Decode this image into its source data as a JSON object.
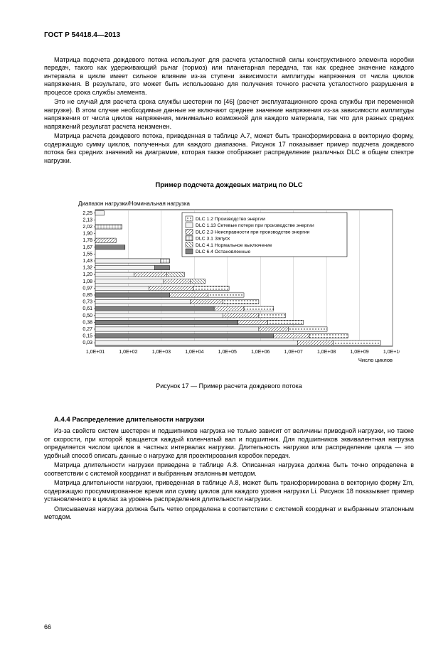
{
  "header": "ГОСТ Р 54418.4—2013",
  "para1": "Матрица подсчета дождевого потока используют для расчета усталостной силы конструктивного элемента коробки передач, такого как удерживающий рычаг (тормоз) или планетарная передача, так как среднее значение каждого интервала в цикле имеет сильное влияние из-за ступени зависимости амплитуды напряжения от числа циклов напряжения. В результате, это может быть использовано для получения точного расчета усталостного разрушения в процессе срока службы элемента.",
  "para2": "Это не случай для расчета срока службы шестерни по [46] (расчет эксплуатационного срока службы при переменной нагрузке). В этом случае необходимые данные не включают среднее значение напряжения из-за зависимости амплитуды напряжения от числа циклов напряжения, минимально возможной для каждого материала, так что для разных средних напряжений результат расчета неизменен.",
  "para3": "Матрица расчета дождевого потока, приведенная в таблице А.7, может быть трансформирована в векторную форму, содержащую сумму циклов, полученных для каждого диапазона. Рисунок 17 показывает пример подсчета дождевого потока без средних значений на диаграмме, которая также отображает распределение различных DLC в общем спектре нагрузки.",
  "chart": {
    "title": "Пример подсчета дождевых матриц по DLC",
    "ylabel": "Диапазон нагрузки/Номинальная нагрузка",
    "xlabel": "Число циклов",
    "yticks": [
      "2,25",
      "2,13",
      "2,02",
      "1,90",
      "1,78",
      "1,67",
      "1,55",
      "1,43",
      "1,32",
      "1,20",
      "1,08",
      "0,97",
      "0,85",
      "0,73",
      "0,61",
      "0,50",
      "0,38",
      "0,27",
      "0,15",
      "0,03"
    ],
    "xticks": [
      "1,0E+01",
      "1,0E+02",
      "1,0E+03",
      "1,0E+04",
      "1,0E+05",
      "1,0E+06",
      "1,0E+07",
      "1,0E+08",
      "1,0E+09",
      "1,0E+10"
    ],
    "legend": [
      {
        "label": "DLC 1.2 Производство энергии",
        "pattern": "dot"
      },
      {
        "label": "DLC 1.13 Сетевые потери при производстве энергии",
        "pattern": "light"
      },
      {
        "label": "DLC 2.3 Неисправности при производстве энергии",
        "pattern": "diag1"
      },
      {
        "label": "DLC 3.1 Запуск",
        "pattern": "grid"
      },
      {
        "label": "DLC 4.1 Нормальное выключение",
        "pattern": "diag2"
      },
      {
        "label": "DLC 6.4 Остановленные",
        "pattern": "solid"
      }
    ],
    "bars": [
      [
        [
          0,
          0.03,
          "light"
        ]
      ],
      [],
      [
        [
          0,
          0.09,
          "grid"
        ]
      ],
      [],
      [
        [
          0,
          0.07,
          "diag1"
        ]
      ],
      [
        [
          0,
          0.1,
          "solid"
        ]
      ],
      [],
      [
        [
          0,
          0.22,
          "light"
        ],
        [
          0.22,
          0.25,
          "grid"
        ]
      ],
      [
        [
          0,
          0.2,
          "light"
        ],
        [
          0.2,
          0.25,
          "solid"
        ]
      ],
      [
        [
          0,
          0.13,
          "light"
        ],
        [
          0.13,
          0.24,
          "diag1"
        ],
        [
          0.24,
          0.3,
          "diag2"
        ]
      ],
      [
        [
          0,
          0.23,
          "light"
        ],
        [
          0.23,
          0.32,
          "diag1"
        ],
        [
          0.32,
          0.37,
          "diag2"
        ]
      ],
      [
        [
          0,
          0.18,
          "light"
        ],
        [
          0.18,
          0.33,
          "diag1"
        ],
        [
          0.33,
          0.45,
          "dot"
        ]
      ],
      [
        [
          0,
          0.25,
          "solid"
        ],
        [
          0.25,
          0.38,
          "diag1"
        ],
        [
          0.38,
          0.5,
          "dot"
        ]
      ],
      [
        [
          0,
          0.32,
          "light"
        ],
        [
          0.32,
          0.43,
          "diag1"
        ],
        [
          0.43,
          0.55,
          "dot"
        ]
      ],
      [
        [
          0,
          0.4,
          "solid"
        ],
        [
          0.4,
          0.5,
          "diag1"
        ],
        [
          0.5,
          0.6,
          "dot"
        ]
      ],
      [
        [
          0,
          0.43,
          "light"
        ],
        [
          0.43,
          0.55,
          "diag1"
        ],
        [
          0.55,
          0.64,
          "dot"
        ]
      ],
      [
        [
          0,
          0.48,
          "solid"
        ],
        [
          0.48,
          0.58,
          "diag1"
        ],
        [
          0.58,
          0.7,
          "dot"
        ]
      ],
      [
        [
          0,
          0.55,
          "light"
        ],
        [
          0.55,
          0.65,
          "diag1"
        ],
        [
          0.65,
          0.78,
          "dot"
        ]
      ],
      [
        [
          0,
          0.6,
          "solid"
        ],
        [
          0.6,
          0.72,
          "diag1"
        ],
        [
          0.72,
          0.85,
          "dot"
        ]
      ],
      [
        [
          0,
          0.68,
          "light"
        ],
        [
          0.68,
          0.8,
          "diag1"
        ],
        [
          0.8,
          0.96,
          "dot"
        ]
      ]
    ],
    "colors": {
      "axis": "#000",
      "grid": "#bfbfbf"
    }
  },
  "figcap": "Рисунок 17 — Пример расчета дождевого потока",
  "sectA44": "А.4.4 Распределение длительности нагрузки",
  "para4": "Из-за свойств систем шестерен и подшипников нагрузка не только зависит от величины приводной нагрузки, но также от скорости, при которой вращается каждый коленчатый вал и подшипник. Для подшипников эквивалентная нагрузка определяется числом циклов в частных интервалах нагрузки. Длительность нагрузки или распределение цикла — это удобный способ описать данные о нагрузке для проектирования коробок передач.",
  "para5": "Матрица длительности нагрузки приведена в таблице А.8. Описанная нагрузка должна быть точно определена в соответствии с системой координат и выбранным эталонным методом.",
  "para6": "Матрица длительности нагрузки, приведенная в таблице А.8, может быть трансформирована в векторную форму Σm, содержащую просуммированное время или сумму циклов для каждого уровня нагрузки Li. Рисунок 18 показывает пример установленного в циклах за уровень распределения длительности нагрузки.",
  "para7": "Описываемая нагрузка должна быть четко определена в соответствии с системой координат и выбранным эталонным методом.",
  "pagenum": "66"
}
